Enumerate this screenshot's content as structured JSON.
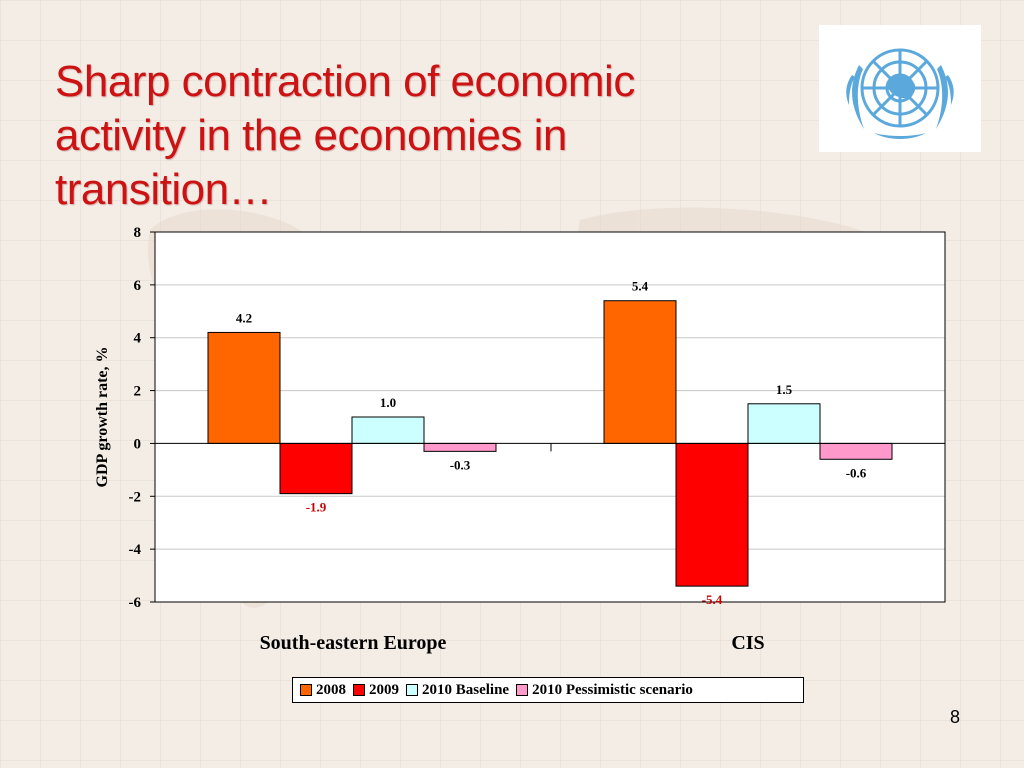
{
  "slide": {
    "title_lines": [
      "Sharp contraction of economic",
      "activity in  the economies in",
      "transition…"
    ],
    "page_number": "8",
    "logo_icon": "un-emblem-icon"
  },
  "colors": {
    "title": "#cc1212",
    "2008": "#ff6600",
    "2009": "#ff0000",
    "2010 Baseline": "#ccffff",
    "2010 Pessimistic scenario": "#ff99cc",
    "emblem": "#5aa8dc"
  },
  "chart_data": {
    "type": "bar",
    "title": "",
    "xlabel": "",
    "ylabel": "GDP growth rate, %",
    "ylim": [
      -6,
      8
    ],
    "yticks": [
      "8",
      "6",
      "4",
      "2",
      "0",
      "-2",
      "-4",
      "-6"
    ],
    "grid": true,
    "legend_position": "bottom",
    "categories": [
      "South-eastern Europe",
      "CIS"
    ],
    "series": [
      {
        "name": "2008",
        "values": [
          4.2,
          5.4
        ],
        "labels": [
          "4.2",
          "5.4"
        ]
      },
      {
        "name": "2009",
        "values": [
          -1.9,
          -5.4
        ],
        "labels": [
          "-1.9",
          "-5.4"
        ]
      },
      {
        "name": "2010 Baseline",
        "values": [
          1.0,
          1.5
        ],
        "labels": [
          "1.0",
          "1.5"
        ]
      },
      {
        "name": "2010 Pessimistic scenario",
        "values": [
          -0.3,
          -0.6
        ],
        "labels": [
          "-0.3",
          "-0.6"
        ]
      }
    ]
  }
}
